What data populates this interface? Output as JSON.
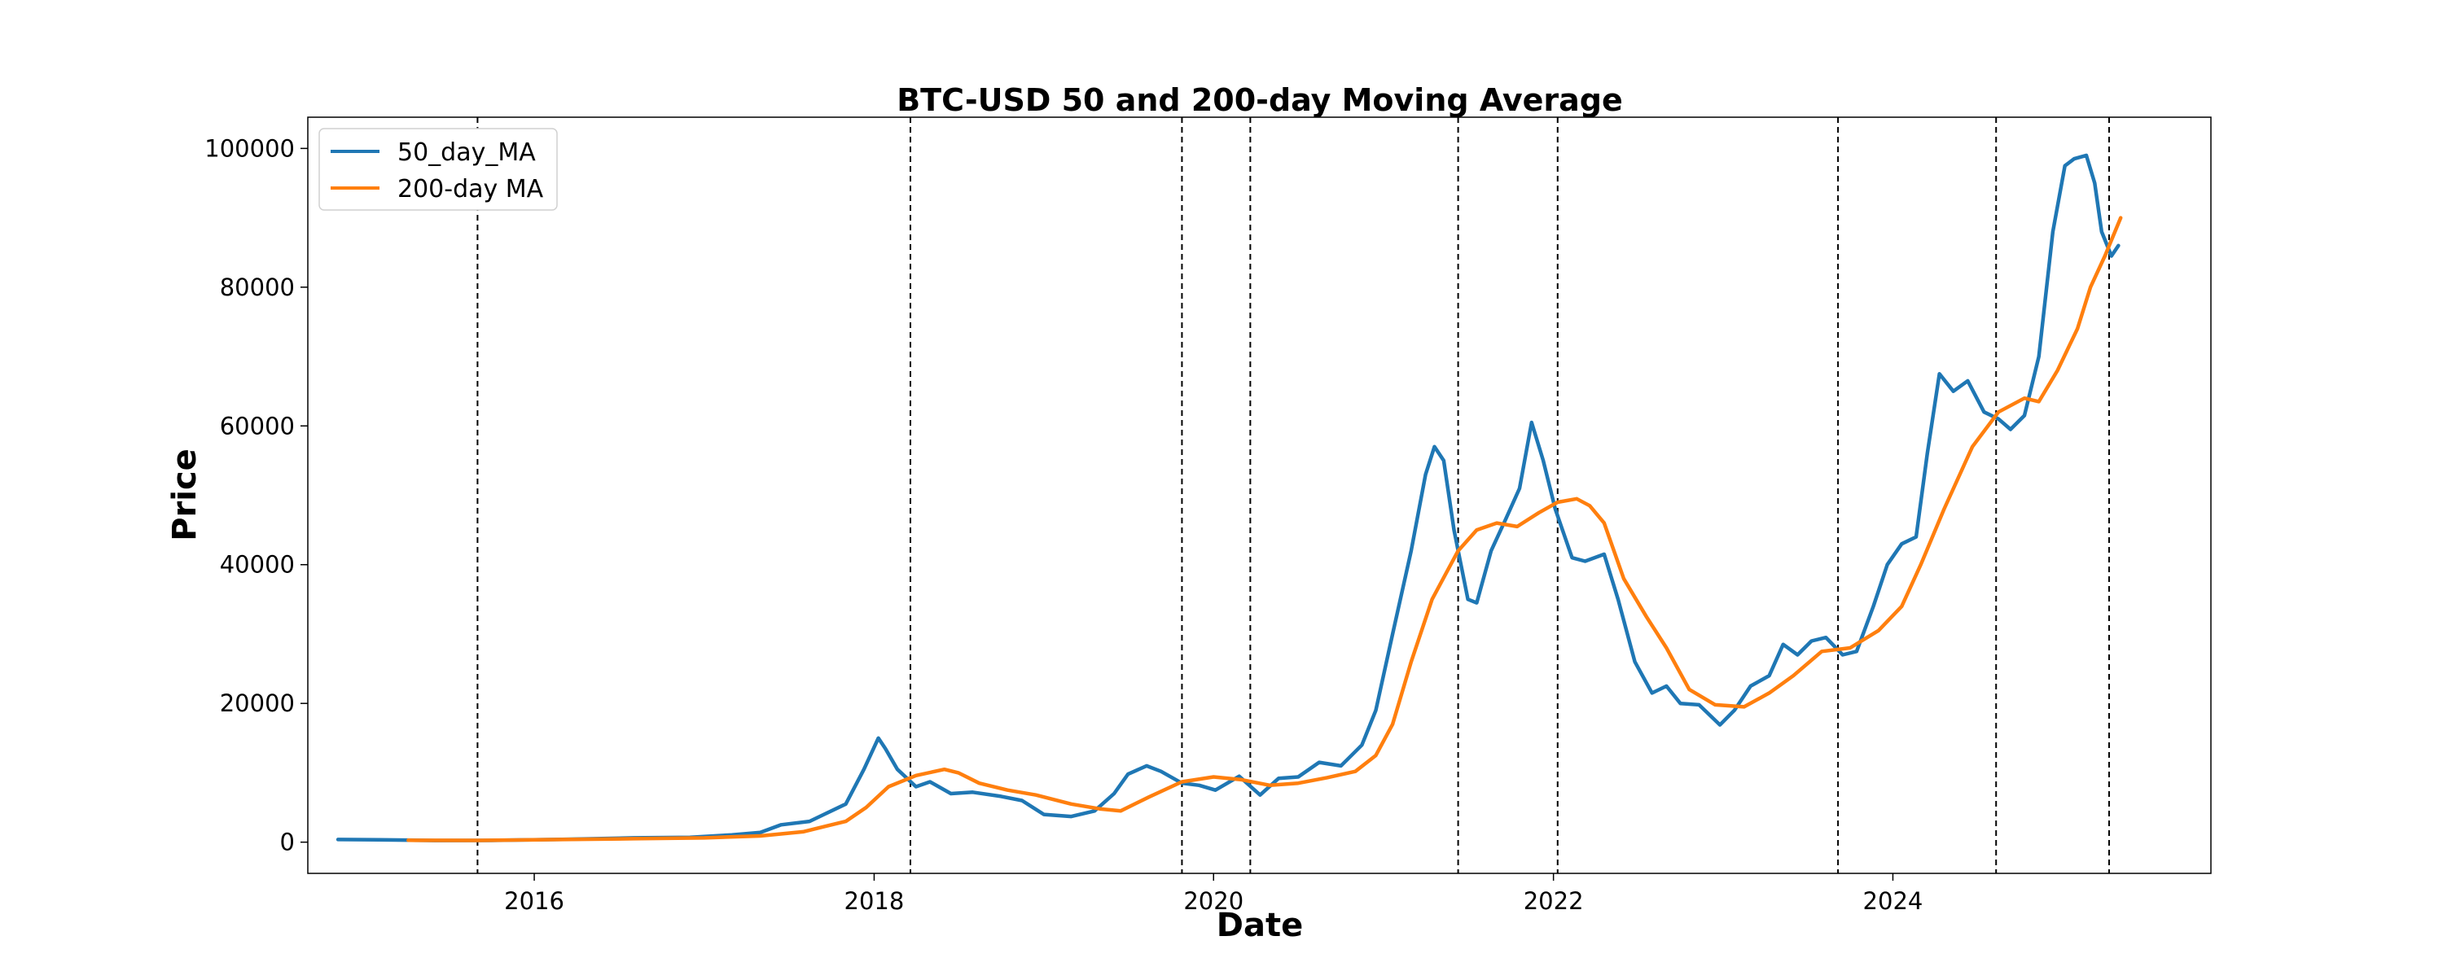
{
  "chart_data": {
    "type": "line",
    "title": "BTC-USD 50 and 200-day Moving Average",
    "xlabel": "Date",
    "ylabel": "Price",
    "xlim": [
      "2014-09-01",
      "2025-11-15"
    ],
    "ylim": [
      -4500,
      104500
    ],
    "x_ticks": [
      "2016",
      "2018",
      "2020",
      "2022",
      "2024"
    ],
    "y_ticks": [
      "0",
      "20000",
      "40000",
      "60000",
      "80000",
      "100000"
    ],
    "grid": false,
    "legend_position": "upper left",
    "vertical_lines": [
      "2015-09-01",
      "2018-03-20",
      "2019-10-25",
      "2020-03-20",
      "2021-06-10",
      "2022-01-10",
      "2023-09-05",
      "2024-08-10",
      "2025-04-10"
    ],
    "series": [
      {
        "name": "50_day_MA",
        "color": "#1f77b4",
        "points": [
          [
            "2014-11-05",
            380
          ],
          [
            "2015-02-01",
            330
          ],
          [
            "2015-06-01",
            240
          ],
          [
            "2015-10-01",
            250
          ],
          [
            "2016-03-01",
            410
          ],
          [
            "2016-08-01",
            620
          ],
          [
            "2016-12-01",
            700
          ],
          [
            "2017-03-01",
            1050
          ],
          [
            "2017-05-01",
            1400
          ],
          [
            "2017-06-15",
            2500
          ],
          [
            "2017-08-15",
            3000
          ],
          [
            "2017-09-15",
            4000
          ],
          [
            "2017-11-01",
            5500
          ],
          [
            "2017-12-10",
            10500
          ],
          [
            "2018-01-10",
            15000
          ],
          [
            "2018-01-25",
            13500
          ],
          [
            "2018-02-20",
            10500
          ],
          [
            "2018-04-01",
            8000
          ],
          [
            "2018-05-01",
            8700
          ],
          [
            "2018-06-15",
            7000
          ],
          [
            "2018-08-01",
            7200
          ],
          [
            "2018-10-01",
            6600
          ],
          [
            "2018-11-15",
            6000
          ],
          [
            "2019-01-01",
            4000
          ],
          [
            "2019-03-01",
            3700
          ],
          [
            "2019-04-20",
            4500
          ],
          [
            "2019-06-01",
            7000
          ],
          [
            "2019-07-01",
            9800
          ],
          [
            "2019-08-10",
            11000
          ],
          [
            "2019-09-10",
            10200
          ],
          [
            "2019-10-25",
            8500
          ],
          [
            "2019-12-01",
            8200
          ],
          [
            "2020-01-05",
            7500
          ],
          [
            "2020-02-25",
            9500
          ],
          [
            "2020-04-10",
            6800
          ],
          [
            "2020-05-20",
            9200
          ],
          [
            "2020-07-01",
            9400
          ],
          [
            "2020-08-15",
            11500
          ],
          [
            "2020-10-01",
            11000
          ],
          [
            "2020-11-15",
            14000
          ],
          [
            "2020-12-15",
            19000
          ],
          [
            "2021-01-20",
            30000
          ],
          [
            "2021-03-01",
            42000
          ],
          [
            "2021-04-01",
            53000
          ],
          [
            "2021-04-20",
            57000
          ],
          [
            "2021-05-10",
            55000
          ],
          [
            "2021-06-01",
            45000
          ],
          [
            "2021-07-01",
            35000
          ],
          [
            "2021-07-20",
            34500
          ],
          [
            "2021-08-20",
            42000
          ],
          [
            "2021-09-20",
            46500
          ],
          [
            "2021-10-20",
            51000
          ],
          [
            "2021-11-15",
            60500
          ],
          [
            "2021-12-10",
            55000
          ],
          [
            "2022-01-05",
            48000
          ],
          [
            "2022-02-10",
            41000
          ],
          [
            "2022-03-10",
            40500
          ],
          [
            "2022-04-20",
            41500
          ],
          [
            "2022-05-20",
            35000
          ],
          [
            "2022-06-25",
            26000
          ],
          [
            "2022-08-01",
            21500
          ],
          [
            "2022-09-01",
            22500
          ],
          [
            "2022-10-01",
            20000
          ],
          [
            "2022-11-10",
            19800
          ],
          [
            "2022-12-25",
            16900
          ],
          [
            "2023-01-25",
            19000
          ],
          [
            "2023-03-01",
            22500
          ],
          [
            "2023-04-10",
            24000
          ],
          [
            "2023-05-10",
            28500
          ],
          [
            "2023-06-10",
            27000
          ],
          [
            "2023-07-10",
            29000
          ],
          [
            "2023-08-10",
            29500
          ],
          [
            "2023-09-15",
            27000
          ],
          [
            "2023-10-15",
            27500
          ],
          [
            "2023-11-20",
            34000
          ],
          [
            "2023-12-20",
            40000
          ],
          [
            "2024-01-20",
            43000
          ],
          [
            "2024-02-20",
            44000
          ],
          [
            "2024-03-15",
            56000
          ],
          [
            "2024-04-10",
            67500
          ],
          [
            "2024-05-10",
            65000
          ],
          [
            "2024-06-10",
            66500
          ],
          [
            "2024-07-15",
            62000
          ],
          [
            "2024-08-15",
            61000
          ],
          [
            "2024-09-10",
            59500
          ],
          [
            "2024-10-10",
            61500
          ],
          [
            "2024-11-10",
            70000
          ],
          [
            "2024-12-10",
            88000
          ],
          [
            "2025-01-05",
            97500
          ],
          [
            "2025-01-25",
            98500
          ],
          [
            "2025-02-20",
            99000
          ],
          [
            "2025-03-10",
            95000
          ],
          [
            "2025-03-25",
            88000
          ],
          [
            "2025-04-15",
            84500
          ],
          [
            "2025-04-30",
            86000
          ]
        ]
      },
      {
        "name": "200-day MA",
        "color": "#ff7f0e",
        "points": [
          [
            "2015-04-05",
            270
          ],
          [
            "2015-09-01",
            250
          ],
          [
            "2016-03-01",
            380
          ],
          [
            "2016-08-01",
            500
          ],
          [
            "2017-01-01",
            620
          ],
          [
            "2017-05-01",
            900
          ],
          [
            "2017-08-01",
            1500
          ],
          [
            "2017-11-01",
            3000
          ],
          [
            "2017-12-15",
            5000
          ],
          [
            "2018-02-01",
            8000
          ],
          [
            "2018-04-01",
            9600
          ],
          [
            "2018-06-01",
            10500
          ],
          [
            "2018-07-01",
            10000
          ],
          [
            "2018-08-15",
            8500
          ],
          [
            "2018-10-15",
            7500
          ],
          [
            "2018-12-15",
            6800
          ],
          [
            "2019-03-01",
            5500
          ],
          [
            "2019-05-01",
            4800
          ],
          [
            "2019-06-15",
            4500
          ],
          [
            "2019-08-15",
            6500
          ],
          [
            "2019-10-25",
            8700
          ],
          [
            "2020-01-01",
            9400
          ],
          [
            "2020-03-01",
            9000
          ],
          [
            "2020-05-01",
            8200
          ],
          [
            "2020-07-01",
            8500
          ],
          [
            "2020-09-01",
            9300
          ],
          [
            "2020-11-01",
            10200
          ],
          [
            "2020-12-15",
            12500
          ],
          [
            "2021-01-20",
            17000
          ],
          [
            "2021-03-01",
            26000
          ],
          [
            "2021-04-15",
            35000
          ],
          [
            "2021-06-10",
            42000
          ],
          [
            "2021-07-20",
            45000
          ],
          [
            "2021-09-01",
            46000
          ],
          [
            "2021-10-15",
            45500
          ],
          [
            "2021-12-01",
            47500
          ],
          [
            "2022-01-10",
            49000
          ],
          [
            "2022-02-20",
            49500
          ],
          [
            "2022-03-20",
            48500
          ],
          [
            "2022-04-20",
            46000
          ],
          [
            "2022-06-01",
            38000
          ],
          [
            "2022-07-20",
            32500
          ],
          [
            "2022-09-01",
            28000
          ],
          [
            "2022-10-20",
            22000
          ],
          [
            "2022-12-15",
            19800
          ],
          [
            "2023-02-15",
            19500
          ],
          [
            "2023-04-10",
            21500
          ],
          [
            "2023-06-01",
            24000
          ],
          [
            "2023-08-01",
            27500
          ],
          [
            "2023-10-01",
            28000
          ],
          [
            "2023-12-01",
            30500
          ],
          [
            "2024-01-20",
            34000
          ],
          [
            "2024-03-01",
            40000
          ],
          [
            "2024-04-20",
            48000
          ],
          [
            "2024-06-20",
            57000
          ],
          [
            "2024-08-15",
            62000
          ],
          [
            "2024-10-10",
            64000
          ],
          [
            "2024-11-10",
            63500
          ],
          [
            "2024-12-20",
            68000
          ],
          [
            "2025-02-01",
            74000
          ],
          [
            "2025-03-01",
            80000
          ],
          [
            "2025-04-01",
            84500
          ],
          [
            "2025-05-05",
            90000
          ]
        ]
      }
    ]
  }
}
